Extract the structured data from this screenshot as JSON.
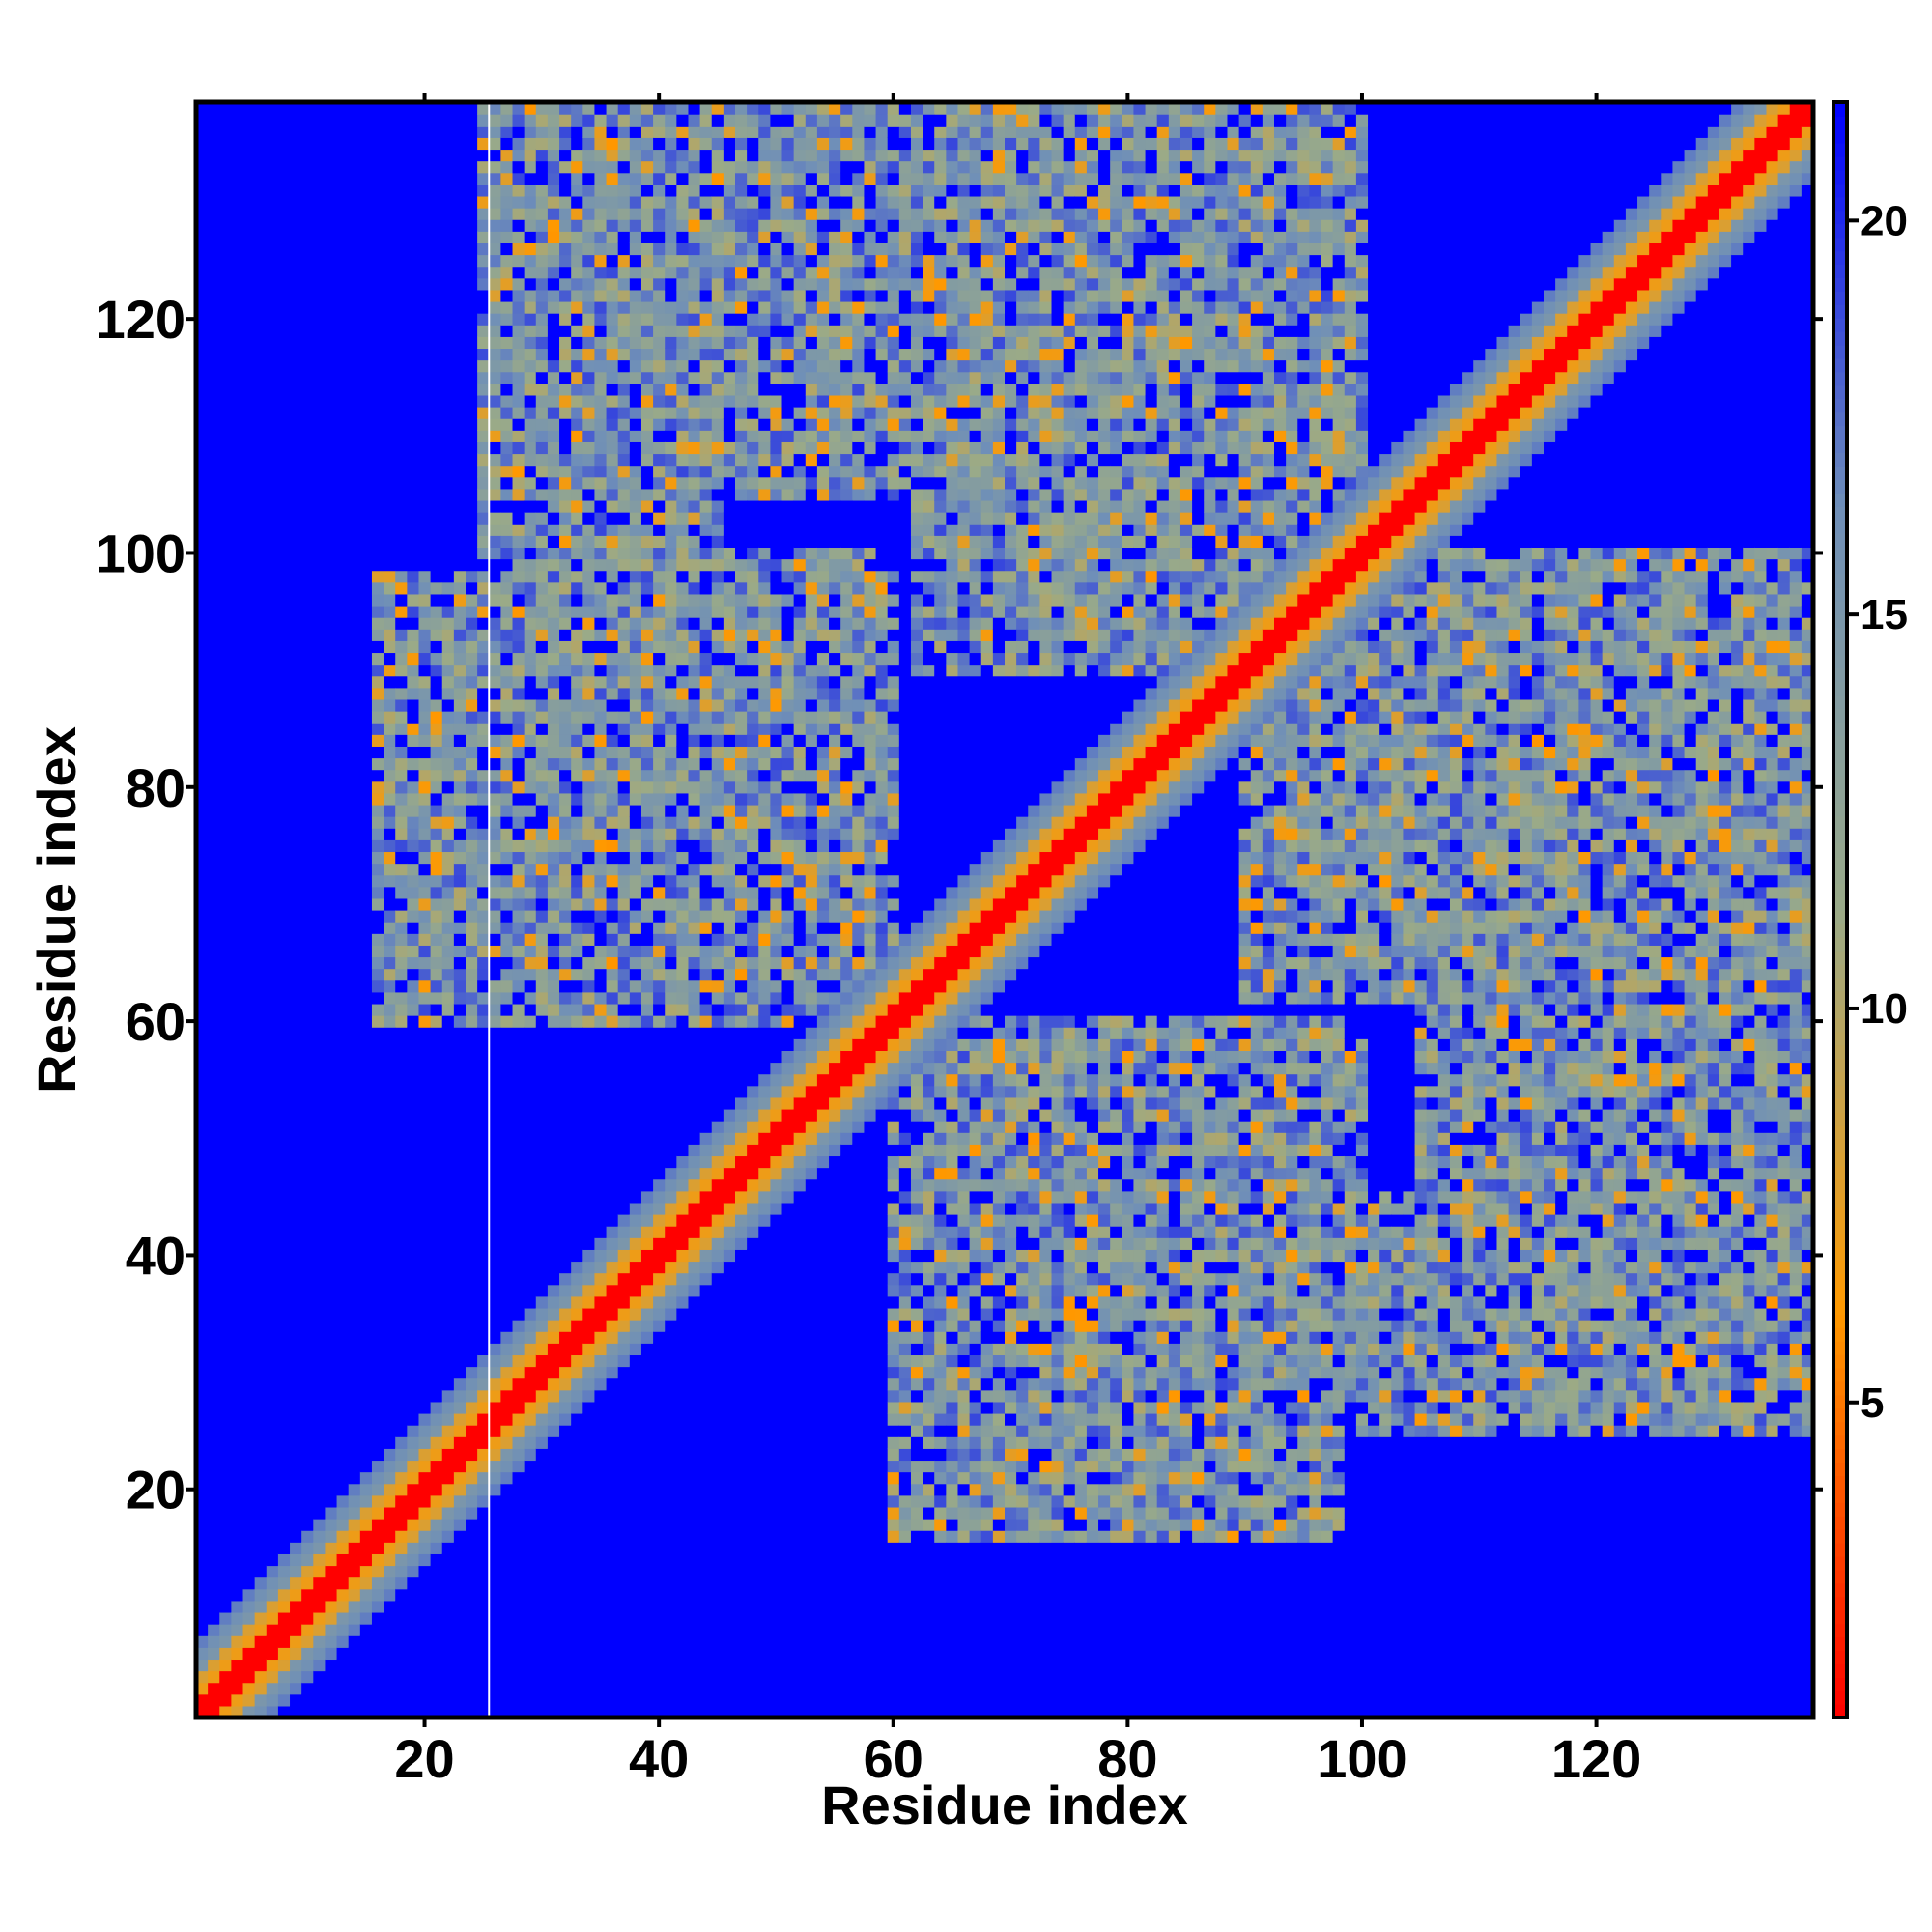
{
  "chart_data": {
    "type": "heatmap",
    "title": "",
    "xlabel": "Residue index",
    "ylabel": "Residue index",
    "xlim": [
      1,
      138
    ],
    "ylim": [
      1,
      138
    ],
    "x_ticks": [
      20,
      40,
      60,
      80,
      100,
      120
    ],
    "y_ticks": [
      20,
      40,
      60,
      80,
      100,
      120
    ],
    "colorbar": {
      "range": [
        1,
        21.5
      ],
      "ticks": [
        5,
        10,
        15,
        20
      ],
      "colors": [
        "#ff0000",
        "#ff9900",
        "#9aaa88",
        "#6f8fb8",
        "#0000ff"
      ]
    },
    "matrix_description": "symmetric distance matrix, values 1-21.5",
    "diagonal_band_value": 1,
    "background_value": 21.5,
    "contact_regions": [
      {
        "x": [
          28,
          58
        ],
        "y": [
          60,
          100
        ]
      },
      {
        "x": [
          60,
          98
        ],
        "y": [
          16,
          60
        ]
      },
      {
        "x": [
          62,
          85
        ],
        "y": [
          95,
          138
        ]
      },
      {
        "x": [
          90,
          118
        ],
        "y": [
          62,
          100
        ]
      },
      {
        "x": [
          45,
          78
        ],
        "y": [
          110,
          138
        ]
      },
      {
        "x": [
          105,
          138
        ],
        "y": [
          40,
          100
        ]
      },
      {
        "x": [
          25,
          45
        ],
        "y": [
          100,
          138
        ]
      }
    ],
    "highlighted_column": 26
  }
}
